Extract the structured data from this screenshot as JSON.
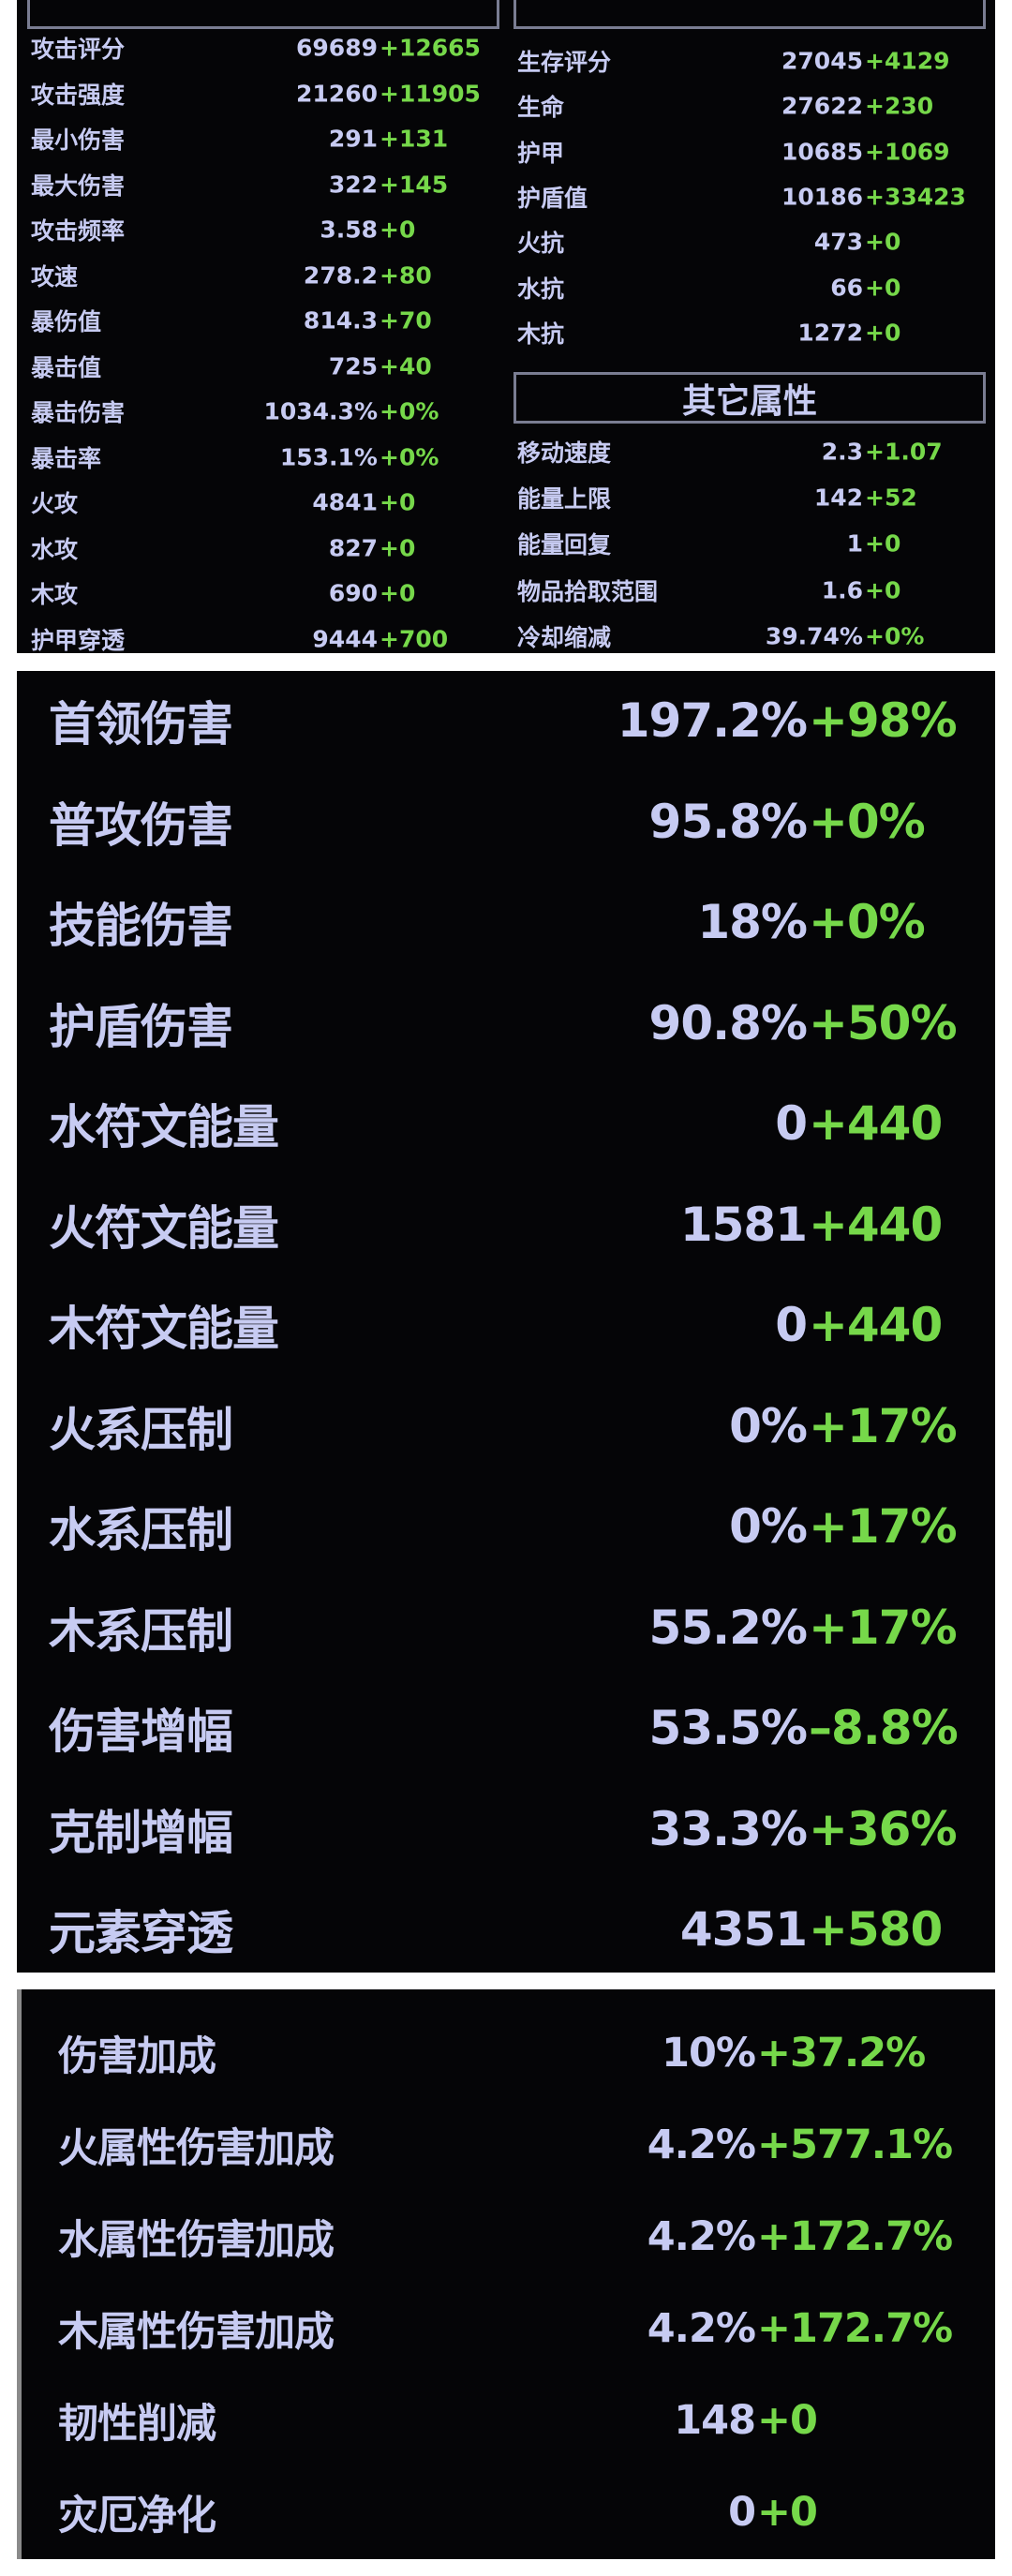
{
  "colors": {
    "label": "#c7cbf2",
    "delta_positive": "#76d84a",
    "panel_bg": "#050507"
  },
  "attack": {
    "header_title": "",
    "rows": [
      {
        "label": "攻击评分",
        "base": "69689",
        "delta": "+12665"
      },
      {
        "label": "攻击强度",
        "base": "21260",
        "delta": "+11905"
      },
      {
        "label": "最小伤害",
        "base": "291",
        "delta": "+131"
      },
      {
        "label": "最大伤害",
        "base": "322",
        "delta": "+145"
      },
      {
        "label": "攻击频率",
        "base": "3.58",
        "delta": "+0"
      },
      {
        "label": "攻速",
        "base": "278.2",
        "delta": "+80"
      },
      {
        "label": "暴伤值",
        "base": "814.3",
        "delta": "+70"
      },
      {
        "label": "暴击值",
        "base": "725",
        "delta": "+40"
      },
      {
        "label": "暴击伤害",
        "base": "1034.3%",
        "delta": "+0%"
      },
      {
        "label": "暴击率",
        "base": "153.1%",
        "delta": "+0%"
      },
      {
        "label": "火攻",
        "base": "4841",
        "delta": "+0"
      },
      {
        "label": "水攻",
        "base": "827",
        "delta": "+0"
      },
      {
        "label": "木攻",
        "base": "690",
        "delta": "+0"
      },
      {
        "label": "护甲穿透",
        "base": "9444",
        "delta": "+700"
      }
    ]
  },
  "survival": {
    "header_title": "",
    "rows": [
      {
        "label": "生存评分",
        "base": "27045",
        "delta": "+4129"
      },
      {
        "label": "生命",
        "base": "27622",
        "delta": "+230"
      },
      {
        "label": "护甲",
        "base": "10685",
        "delta": "+1069"
      },
      {
        "label": "护盾值",
        "base": "10186",
        "delta": "+33423"
      },
      {
        "label": "火抗",
        "base": "473",
        "delta": "+0"
      },
      {
        "label": "水抗",
        "base": "66",
        "delta": "+0"
      },
      {
        "label": "木抗",
        "base": "1272",
        "delta": "+0"
      }
    ]
  },
  "other": {
    "header_title": "其它属性",
    "rows": [
      {
        "label": "移动速度",
        "base": "2.3",
        "delta": "+1.07"
      },
      {
        "label": "能量上限",
        "base": "142",
        "delta": "+52"
      },
      {
        "label": "能量回复",
        "base": "1",
        "delta": "+0"
      },
      {
        "label": "物品拾取范围",
        "base": "1.6",
        "delta": "+0"
      },
      {
        "label": "冷却缩减",
        "base": "39.74%",
        "delta": "+0%"
      }
    ]
  },
  "damage": {
    "rows": [
      {
        "label": "首领伤害",
        "base": "197.2%",
        "delta": "+98%"
      },
      {
        "label": "普攻伤害",
        "base": "95.8%",
        "delta": "+0%"
      },
      {
        "label": "技能伤害",
        "base": "18%",
        "delta": "+0%"
      },
      {
        "label": "护盾伤害",
        "base": "90.8%",
        "delta": "+50%"
      },
      {
        "label": "水符文能量",
        "base": "0",
        "delta": "+440"
      },
      {
        "label": "火符文能量",
        "base": "1581",
        "delta": "+440"
      },
      {
        "label": "木符文能量",
        "base": "0",
        "delta": "+440"
      },
      {
        "label": "火系压制",
        "base": "0%",
        "delta": "+17%"
      },
      {
        "label": "水系压制",
        "base": "0%",
        "delta": "+17%"
      },
      {
        "label": "木系压制",
        "base": "55.2%",
        "delta": "+17%"
      },
      {
        "label": "伤害增幅",
        "base": "53.5%",
        "delta": "–8.8%"
      },
      {
        "label": "克制增幅",
        "base": "33.3%",
        "delta": "+36%"
      },
      {
        "label": "元素穿透",
        "base": "4351",
        "delta": "+580"
      }
    ]
  },
  "bonus": {
    "rows": [
      {
        "label": "伤害加成",
        "base": "10%",
        "delta": "+37.2%"
      },
      {
        "label": "火属性伤害加成",
        "base": "4.2%",
        "delta": "+577.1%"
      },
      {
        "label": "水属性伤害加成",
        "base": "4.2%",
        "delta": "+172.7%"
      },
      {
        "label": "木属性伤害加成",
        "base": "4.2%",
        "delta": "+172.7%"
      },
      {
        "label": "韧性削减",
        "base": "148",
        "delta": "+0"
      },
      {
        "label": "灾厄净化",
        "base": "0",
        "delta": "+0"
      }
    ]
  }
}
